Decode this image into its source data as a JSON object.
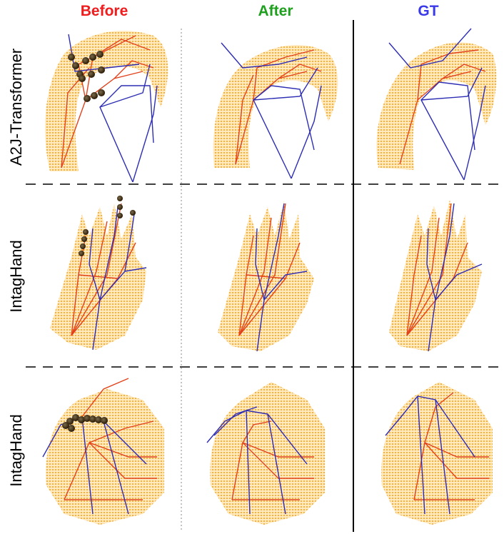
{
  "columns": [
    {
      "label": "Before",
      "color": "#ee1c1c"
    },
    {
      "label": "After",
      "color": "#1ea01e"
    },
    {
      "label": "GT",
      "color": "#3a3ae8"
    }
  ],
  "rows": [
    {
      "label": "A2J-Transformer"
    },
    {
      "label": "IntagHand"
    },
    {
      "label": "IntagHand"
    }
  ],
  "colors": {
    "mesh": "#ffa500",
    "skeleton_left": "#e0431c",
    "skeleton_right": "#2d2db3",
    "error_marker": "#3a2a10"
  }
}
